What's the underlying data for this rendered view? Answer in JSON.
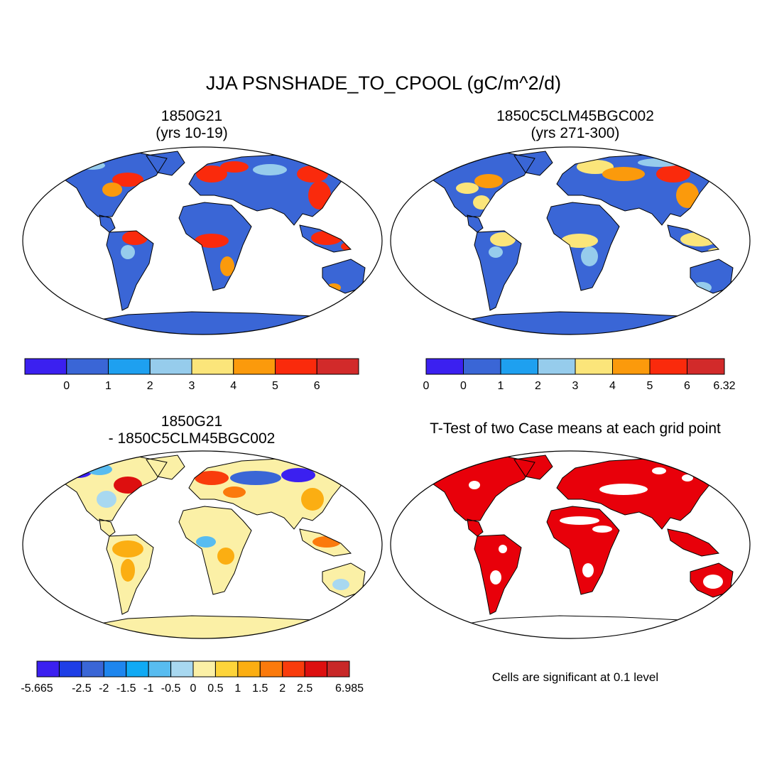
{
  "figure": {
    "title": "JJA PSNSHADE_TO_CPOOL (gC/m^2/d)"
  },
  "panels": [
    {
      "title_line1": "1850G21",
      "title_line2": "(yrs 10-19)",
      "ocean_color": "#ffffff",
      "land_base_color": "#3a66d6",
      "colorbar": {
        "colors": [
          "#3b20f0",
          "#3a66d6",
          "#1ea0f0",
          "#96ccec",
          "#fbe57a",
          "#fb9a0c",
          "#fa2a0c",
          "#d22a2a"
        ],
        "labels": [
          "0",
          "1",
          "2",
          "3",
          "4",
          "5",
          "6"
        ]
      }
    },
    {
      "title_line1": "1850C5CLM45BGC002",
      "title_line2": "(yrs 271-300)",
      "ocean_color": "#ffffff",
      "land_base_color": "#3a66d6",
      "colorbar": {
        "colors": [
          "#3b20f0",
          "#3a66d6",
          "#1ea0f0",
          "#96ccec",
          "#fbe57a",
          "#fb9a0c",
          "#fa2a0c",
          "#d22a2a"
        ],
        "labels": [
          "0",
          "0",
          "1",
          "2",
          "3",
          "4",
          "5",
          "6",
          "6.32"
        ]
      }
    },
    {
      "title_line1": "1850G21",
      "title_line2": "- 1850C5CLM45BGC002",
      "ocean_color": "#ffffff",
      "land_base_color": "#fbf0a6",
      "colorbar": {
        "colors": [
          "#3b20f0",
          "#1e3ee6",
          "#3a66d6",
          "#1e86ee",
          "#10aaf4",
          "#58bcf0",
          "#a8d8f0",
          "#fbf0a6",
          "#fdd43a",
          "#fbae12",
          "#fb7a0c",
          "#f93c0c",
          "#dd0f0f",
          "#c82828"
        ],
        "labels": [
          "-5.665",
          "-2.5",
          "-2",
          "-1.5",
          "-1",
          "-0.5",
          "0",
          "0.5",
          "1",
          "1.5",
          "2",
          "2.5",
          "6.985"
        ]
      }
    },
    {
      "title": "T-Test of two Case means at each grid point",
      "ocean_color": "#ffffff",
      "land_base_color": "#e8000a",
      "note": "Cells are significant at 0.1 level"
    }
  ]
}
